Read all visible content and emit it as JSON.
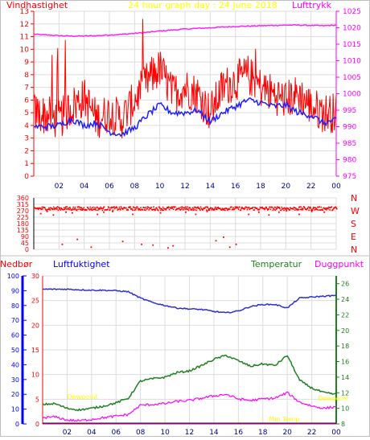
{
  "header": {
    "left_label": "Vindhastighet",
    "center_title": "24 hour graph day : 24 June 2018",
    "right_label": "Lufttrykk"
  },
  "colors": {
    "wind": "#ff0000",
    "wind_avg": "#2020ff",
    "pressure": "#ff20ff",
    "grid": "#dddddd",
    "axis_left": "#ff0000",
    "axis_right": "#ff00ff",
    "title": "#ffff00",
    "rain": "#0000ff",
    "humidity": "#3030d0",
    "temperature": "#208020",
    "dewpoint": "#ff00ff",
    "minmax_text": "#ffff00"
  },
  "hour_labels": [
    "02",
    "04",
    "06",
    "08",
    "10",
    "12",
    "14",
    "16",
    "18",
    "20",
    "22",
    "00"
  ],
  "chart_data": [
    {
      "type": "line",
      "name": "wind-and-pressure",
      "title": "24 hour graph day : 24 June 2018",
      "ylabel_left": "Vindhastighet",
      "ylabel_right": "Lufttrykk",
      "x_hours": [
        0,
        1,
        2,
        3,
        4,
        5,
        6,
        7,
        8,
        9,
        10,
        11,
        12,
        13,
        14,
        15,
        16,
        17,
        18,
        19,
        20,
        21,
        22,
        23,
        24
      ],
      "ylim_left": [
        0,
        13
      ],
      "yticks_left": [
        0,
        1,
        2,
        3,
        4,
        5,
        6,
        7,
        8,
        9,
        10,
        11,
        12,
        13
      ],
      "ylim_right": [
        975,
        1025
      ],
      "yticks_right": [
        975,
        980,
        985,
        990,
        995,
        1000,
        1005,
        1010,
        1015,
        1020,
        1025
      ],
      "series": [
        {
          "axis": "left",
          "values": [
            5.0,
            4.8,
            4.4,
            5.5,
            6.2,
            4.5,
            5.0,
            4.5,
            6.0,
            7.5,
            8.5,
            6.5,
            7.0,
            6.5,
            5.0,
            7.0,
            7.5,
            8.0,
            7.0,
            6.5,
            6.0,
            6.5,
            5.5,
            5.0,
            5.0
          ]
        },
        {
          "axis": "left",
          "values": [
            3.9,
            3.9,
            4.0,
            4.5,
            4.0,
            4.2,
            3.5,
            3.3,
            3.8,
            4.8,
            5.6,
            5.0,
            5.0,
            5.2,
            4.3,
            5.0,
            5.5,
            6.0,
            5.8,
            5.5,
            5.6,
            5.0,
            4.8,
            4.2,
            4.4
          ]
        },
        {
          "axis": "right",
          "values": [
            1018,
            1017.8,
            1017.6,
            1017.5,
            1017.5,
            1017.6,
            1017.8,
            1018.0,
            1018.3,
            1018.6,
            1019.0,
            1019.3,
            1019.6,
            1019.8,
            1020.0,
            1020.2,
            1020.4,
            1020.5,
            1020.6,
            1020.7,
            1020.8,
            1020.8,
            1020.7,
            1020.6,
            1020.8
          ]
        }
      ]
    },
    {
      "type": "scatter",
      "name": "wind-direction",
      "yticks": [
        0,
        45,
        90,
        135,
        180,
        225,
        270,
        315,
        360
      ],
      "ylim": [
        0,
        360
      ],
      "compass_labels": [
        "N",
        "W",
        "S",
        "E",
        "N"
      ],
      "main_band_deg": 290,
      "hours": [
        0.5,
        1.0,
        1.5,
        2.2,
        2.5,
        3.0,
        3.4,
        3.8,
        4.5,
        5.0,
        5.5,
        6.2,
        7.0,
        7.8,
        8.5,
        9.4,
        10.0,
        10.6,
        11.0,
        12.0,
        12.8,
        13.7,
        14.4,
        15.0,
        15.5,
        16.0,
        17.0,
        17.8,
        18.6,
        19.4,
        20.0,
        21.0,
        22.0,
        23.0
      ],
      "degrees": [
        255,
        270,
        245,
        40,
        265,
        260,
        75,
        280,
        20,
        250,
        265,
        270,
        60,
        250,
        40,
        35,
        260,
        15,
        30,
        265,
        250,
        270,
        65,
        90,
        20,
        40,
        250,
        265,
        245,
        265,
        275,
        250,
        270,
        265
      ]
    },
    {
      "type": "line",
      "name": "rain-humidity-temperature",
      "label_rain": "Nedbør",
      "label_humidity": "Luftfuktighet",
      "label_temperature": "Temperatur",
      "label_dewpoint": "Duggpunkt",
      "yticks_rain": [
        0,
        10,
        20,
        30,
        40,
        50,
        60,
        70,
        80,
        90,
        100
      ],
      "ylim_rain": [
        0,
        100
      ],
      "yticks_humidity": [
        0,
        5,
        10,
        15,
        20,
        25,
        30
      ],
      "ylim_humidity": [
        0,
        30
      ],
      "yticks_temp": [
        8,
        10,
        12,
        14,
        16,
        18,
        20,
        22,
        24,
        26
      ],
      "ylim_temp": [
        8,
        27
      ],
      "x_hours": [
        0,
        1,
        2,
        3,
        4,
        5,
        6,
        7,
        8,
        9,
        10,
        11,
        12,
        13,
        14,
        15,
        16,
        17,
        18,
        19,
        20,
        21,
        22,
        23,
        24
      ],
      "series": [
        {
          "values": [
            27.3,
            27.3,
            27.3,
            27.2,
            27.1,
            27.1,
            27.0,
            26.8,
            25.5,
            24.6,
            24.0,
            23.5,
            23.3,
            23.2,
            22.8,
            22.5,
            22.9,
            23.8,
            24.2,
            24.2,
            23.5,
            25.5,
            25.7,
            25.9,
            26.0
          ]
        },
        {
          "values": [
            10.5,
            10.6,
            10.0,
            9.8,
            10.0,
            10.3,
            10.7,
            11.3,
            13.5,
            13.8,
            14.0,
            14.6,
            14.8,
            15.5,
            16.3,
            16.8,
            16.1,
            15.4,
            15.7,
            15.5,
            16.8,
            13.6,
            12.6,
            12.0,
            11.8
          ]
        },
        {
          "values": [
            8.8,
            8.9,
            8.5,
            8.4,
            8.6,
            8.8,
            9.0,
            9.2,
            10.4,
            10.5,
            10.6,
            10.9,
            11.0,
            11.3,
            11.6,
            11.8,
            11.2,
            11.0,
            11.2,
            11.3,
            12.0,
            10.8,
            10.3,
            10.0,
            10.2
          ]
        },
        {
          "values": [
            0,
            0,
            0,
            0,
            0,
            0,
            0,
            0,
            0,
            0,
            0,
            0,
            0,
            0,
            0,
            0,
            0,
            0,
            0,
            0,
            0,
            0,
            0,
            0,
            0
          ]
        }
      ],
      "annotations": [
        {
          "text": "Dewpoint",
          "hour": 2.0,
          "temp": 11.2
        },
        {
          "text": "Min Temp",
          "hour": 18.5,
          "temp": 8.3
        },
        {
          "text": "Dewpoint",
          "hour": 22.5,
          "temp": 11.0
        }
      ]
    }
  ]
}
